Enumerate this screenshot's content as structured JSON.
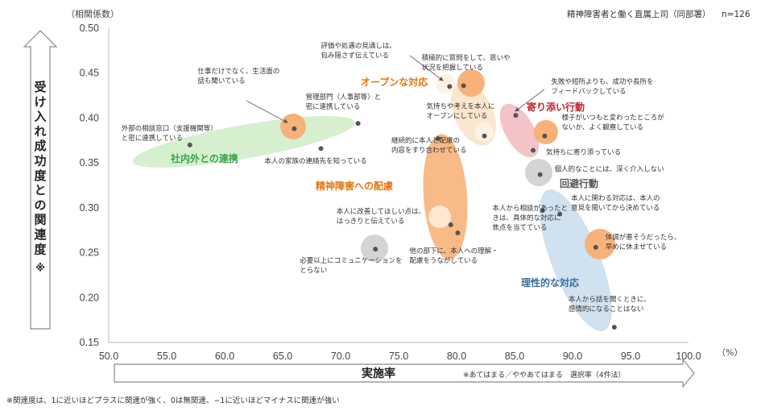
{
  "header": {
    "subtitle": "精神障害者と働く直属上司（同部署）",
    "sample": "n=126",
    "y_unit": "（相関係数）",
    "x_unit": "（%）"
  },
  "y_axis_title": [
    "受",
    "け",
    "入",
    "れ",
    "成",
    "功",
    "度",
    "と",
    "の",
    "関",
    "連",
    "度",
    "※"
  ],
  "x_axis_title": "実施率",
  "x_axis_note": "※あてはまる／ややあてはまる　選択率（4件法）",
  "footnote": "※関連度は、1に近いほどプラスに関連が強く、0は無関連、−1に近いほどマイナスに関連が強い",
  "colors": {
    "orange": "#f7b27a",
    "orange_light": "#fbe0c4",
    "green": "#d6f0cf",
    "pink": "#f4c3c8",
    "blue": "#d0e1ef",
    "gray": "#cfcfcf",
    "green_text": "#3aa24a",
    "orange_text": "#e5760f",
    "red_text": "#c0262d",
    "blue_text": "#3c6f9e",
    "gray_text": "#555555",
    "point": "#555555"
  },
  "chart_data": {
    "type": "scatter",
    "xlim": [
      50,
      100
    ],
    "ylim": [
      0.15,
      0.5
    ],
    "x_ticks": [
      "50.0",
      "55.0",
      "60.0",
      "65.0",
      "70.0",
      "75.0",
      "80.0",
      "85.0",
      "90.0",
      "95.0",
      "100.0"
    ],
    "y_ticks": [
      "0.15",
      "0.20",
      "0.25",
      "0.30",
      "0.35",
      "0.40",
      "0.45",
      "0.50"
    ],
    "grid": false,
    "groups": [
      {
        "name": "社内外との連携",
        "color": "green_text"
      },
      {
        "name": "オープンな対応",
        "color": "orange_text"
      },
      {
        "name": "精神障害への配慮",
        "color": "orange_text"
      },
      {
        "name": "寄り添い行動",
        "color": "red_text"
      },
      {
        "name": "回避行動",
        "color": "gray_text"
      },
      {
        "name": "理性的な対応",
        "color": "blue_text"
      }
    ],
    "points": [
      {
        "label": [
          "外部の相談窓口（支援機関等）",
          "と密に連携している"
        ],
        "x": 57.0,
        "y": 0.37
      },
      {
        "label": [
          "仕事だけでなく、生活面の",
          "話も聞いている"
        ],
        "x": 66.0,
        "y": 0.388
      },
      {
        "label": [
          "管理部門（人事部等）と",
          "密に連携している"
        ],
        "x": 71.5,
        "y": 0.394
      },
      {
        "label": [
          "本人の家族の連絡先を知っている"
        ],
        "x": 68.3,
        "y": 0.366
      },
      {
        "label": [
          "評価や処遇の見通しは、",
          "包み隠さず伝えている"
        ],
        "x": 79.4,
        "y": 0.435
      },
      {
        "label": [
          "積極的に質問をして、思いや",
          "状況を把握している"
        ],
        "x": 80.6,
        "y": 0.436
      },
      {
        "label": [
          "気持ちや考えを本人に",
          "オープンにしている"
        ],
        "x": 82.4,
        "y": 0.38
      },
      {
        "label": [
          "継続的に本人と配慮の",
          "内容をすり合わせている"
        ],
        "x": 78.4,
        "y": 0.377
      },
      {
        "label": [
          "本人に改善してほしい点は、",
          "はっきりと伝えている"
        ],
        "x": 79.5,
        "y": 0.281
      },
      {
        "label": [
          "他の部下に、本人への理解・",
          "配慮をうながしている"
        ],
        "x": 80.1,
        "y": 0.272
      },
      {
        "label": [
          "必要以上にコミュニケーションを",
          "とらない"
        ],
        "x": 73.0,
        "y": 0.254
      },
      {
        "label": [
          "失敗や短所よりも、成功や長所を",
          "フィードバックしている"
        ],
        "x": 85.1,
        "y": 0.403
      },
      {
        "label": [
          "様子がいつもと変わったところが",
          "ないか、よく観察している"
        ],
        "x": 87.6,
        "y": 0.38
      },
      {
        "label": [
          "気持ちに寄り添っている"
        ],
        "x": 86.6,
        "y": 0.364
      },
      {
        "label": [
          "個人的なことには、深く介入しない"
        ],
        "x": 87.2,
        "y": 0.337
      },
      {
        "label": [
          "本人に関わる対応は、本人の",
          "意見を聞いてから決めている"
        ],
        "x": 88.9,
        "y": 0.293
      },
      {
        "label": [
          "本人から相談があったと",
          "きは、具体的な対応に",
          "焦点を当てている"
        ],
        "x": 87.4,
        "y": 0.297
      },
      {
        "label": [
          "体調が悪そうだったら、",
          "早めに休ませている"
        ],
        "x": 92.0,
        "y": 0.256
      },
      {
        "label": [
          "本人から話を聞くときに、",
          "感情的になることはない"
        ],
        "x": 93.6,
        "y": 0.167
      }
    ]
  }
}
